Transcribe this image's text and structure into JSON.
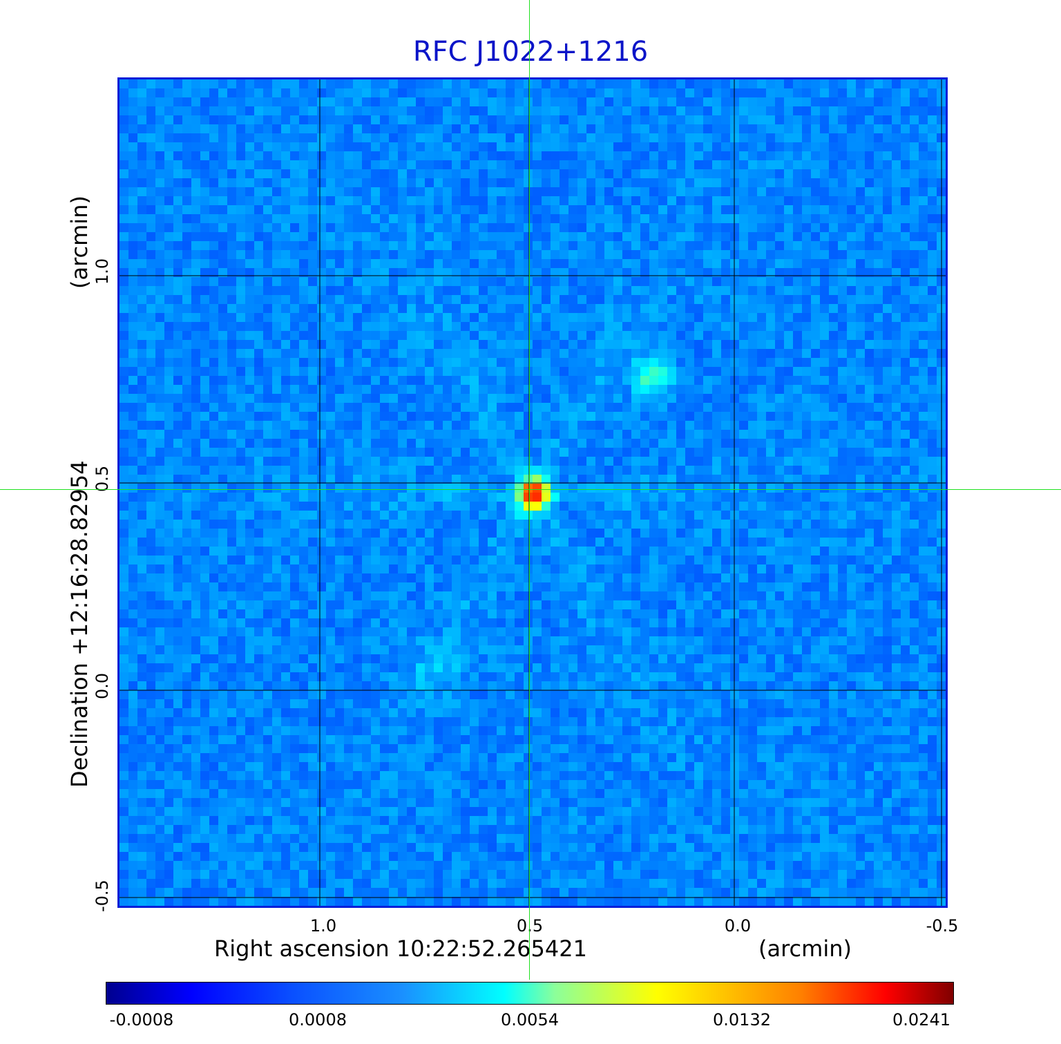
{
  "title": "RFC J1022+1216",
  "x_axis": {
    "label": "Right ascension  10:22:52.265421",
    "unit": "(arcmin)",
    "ticks": [
      "1.0",
      "0.5",
      "0.0",
      "-0.5"
    ]
  },
  "y_axis": {
    "label": "Declination  +12:16:28.82954",
    "unit": "(arcmin)",
    "ticks": [
      "1.0",
      "0.5",
      "0.0",
      "-0.5"
    ]
  },
  "colorbar": {
    "ticks": [
      "-0.0008",
      "0.0008",
      "0.0054",
      "0.0132",
      "0.0241"
    ],
    "colormap": "jet"
  },
  "grid": true,
  "crosshair_color": "#20e020",
  "title_color": "#0b14c8",
  "features": {
    "peak_value": 0.0241,
    "background": "noise field, mostly blue"
  }
}
